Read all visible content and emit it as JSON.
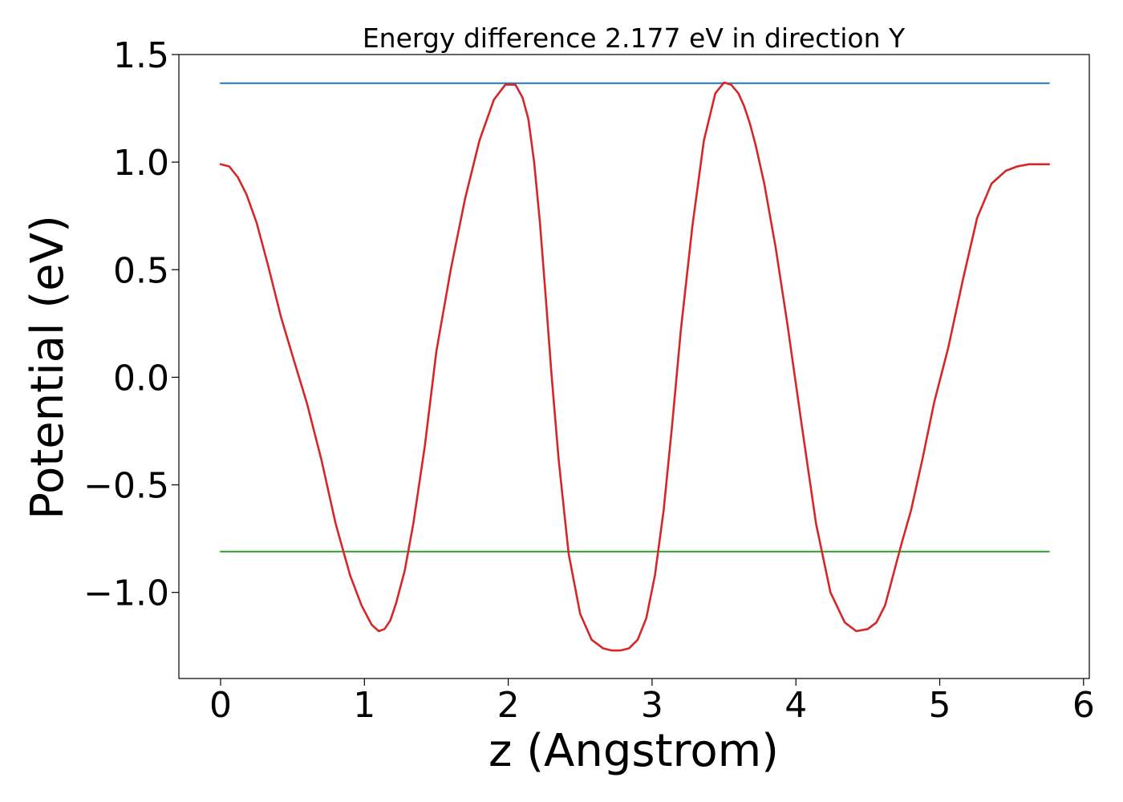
{
  "chart_data": {
    "type": "line",
    "title": "Energy difference 2.177 eV in direction Y",
    "xlabel": "z (Angstrom)",
    "ylabel": "Potential (eV)",
    "xlim": [
      -0.29,
      6.04
    ],
    "ylim": [
      -1.4,
      1.5
    ],
    "xticks": [
      0,
      1,
      2,
      3,
      4,
      5,
      6
    ],
    "xtick_labels": [
      "0",
      "1",
      "2",
      "3",
      "4",
      "5",
      "6"
    ],
    "yticks": [
      -1.0,
      -0.5,
      0.0,
      0.5,
      1.0,
      1.5
    ],
    "ytick_labels": [
      "−1.0",
      "−0.5",
      "0.0",
      "0.5",
      "1.0",
      "1.5"
    ],
    "grid": false,
    "series": [
      {
        "color": "#1f77b4",
        "x": [
          0,
          5.76
        ],
        "y": [
          1.367,
          1.367
        ]
      },
      {
        "color": "#2ca02c",
        "x": [
          0,
          5.76
        ],
        "y": [
          -0.81,
          -0.81
        ]
      },
      {
        "color": "#d62728",
        "x": [
          0,
          0.06,
          0.12,
          0.18,
          0.25,
          0.33,
          0.42,
          0.5,
          0.6,
          0.7,
          0.8,
          0.9,
          0.98,
          1.05,
          1.1,
          1.14,
          1.18,
          1.22,
          1.28,
          1.34,
          1.42,
          1.5,
          1.6,
          1.7,
          1.8,
          1.9,
          1.98,
          2.05,
          2.1,
          2.14,
          2.18,
          2.22,
          2.26,
          2.3,
          2.35,
          2.42,
          2.5,
          2.58,
          2.66,
          2.72,
          2.78,
          2.84,
          2.9,
          2.96,
          3.02,
          3.08,
          3.14,
          3.2,
          3.28,
          3.36,
          3.44,
          3.5,
          3.55,
          3.6,
          3.64,
          3.68,
          3.72,
          3.78,
          3.86,
          3.94,
          4.04,
          4.14,
          4.24,
          4.34,
          4.42,
          4.5,
          4.56,
          4.62,
          4.66,
          4.7,
          4.74,
          4.8,
          4.88,
          4.96,
          5.06,
          5.16,
          5.26,
          5.36,
          5.46,
          5.54,
          5.62,
          5.68,
          5.76
        ],
        "y": [
          0.99,
          0.98,
          0.93,
          0.85,
          0.72,
          0.52,
          0.28,
          0.1,
          -0.12,
          -0.38,
          -0.68,
          -0.92,
          -1.06,
          -1.15,
          -1.18,
          -1.17,
          -1.13,
          -1.05,
          -0.9,
          -0.68,
          -0.32,
          0.12,
          0.5,
          0.83,
          1.1,
          1.29,
          1.36,
          1.36,
          1.3,
          1.2,
          1.0,
          0.72,
          0.38,
          0.02,
          -0.38,
          -0.82,
          -1.1,
          -1.22,
          -1.26,
          -1.27,
          -1.27,
          -1.26,
          -1.22,
          -1.12,
          -0.92,
          -0.62,
          -0.22,
          0.22,
          0.7,
          1.1,
          1.32,
          1.37,
          1.36,
          1.32,
          1.26,
          1.18,
          1.08,
          0.9,
          0.6,
          0.25,
          -0.22,
          -0.68,
          -1.0,
          -1.14,
          -1.18,
          -1.17,
          -1.14,
          -1.06,
          -0.96,
          -0.86,
          -0.76,
          -0.62,
          -0.38,
          -0.12,
          0.14,
          0.45,
          0.74,
          0.9,
          0.96,
          0.98,
          0.99,
          0.99,
          0.99
        ]
      }
    ]
  }
}
